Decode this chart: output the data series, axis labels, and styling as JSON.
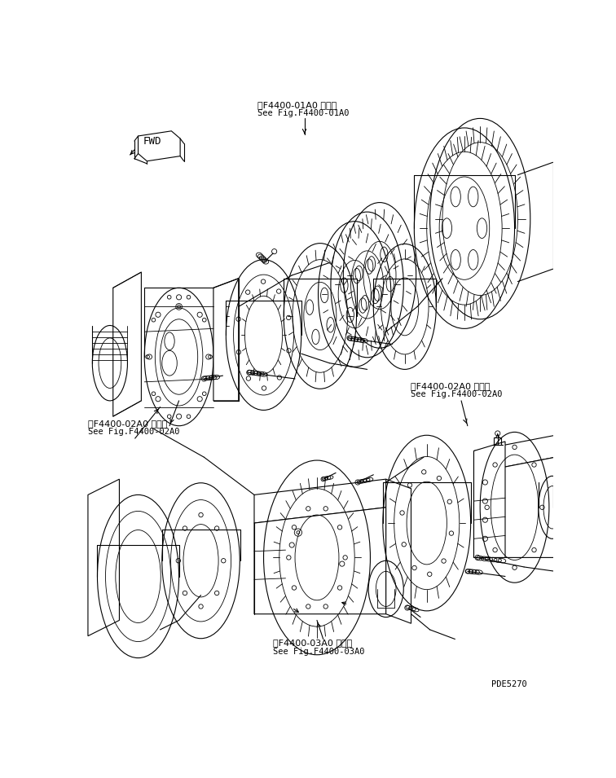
{
  "bg_color": "#ffffff",
  "line_color": "#000000",
  "fig_width": 7.56,
  "fig_height": 9.55,
  "dpi": 100,
  "labels": {
    "top_ref_ja": "第F4400-01A0 図参照",
    "top_ref_en": "See Fig.F4400-01A0",
    "mid_right_ref_ja": "第F4400-02A0 図参照",
    "mid_right_ref_en": "See Fig.F4400-02A0",
    "left_ref_ja": "第F4400-02A0 図参照",
    "left_ref_en": "See Fig.F4400-02A0",
    "bottom_ref_ja": "第F4400-03A0 図参照",
    "bottom_ref_en": "See Fig.F4400-03A0",
    "part_number": "PDE5270"
  }
}
